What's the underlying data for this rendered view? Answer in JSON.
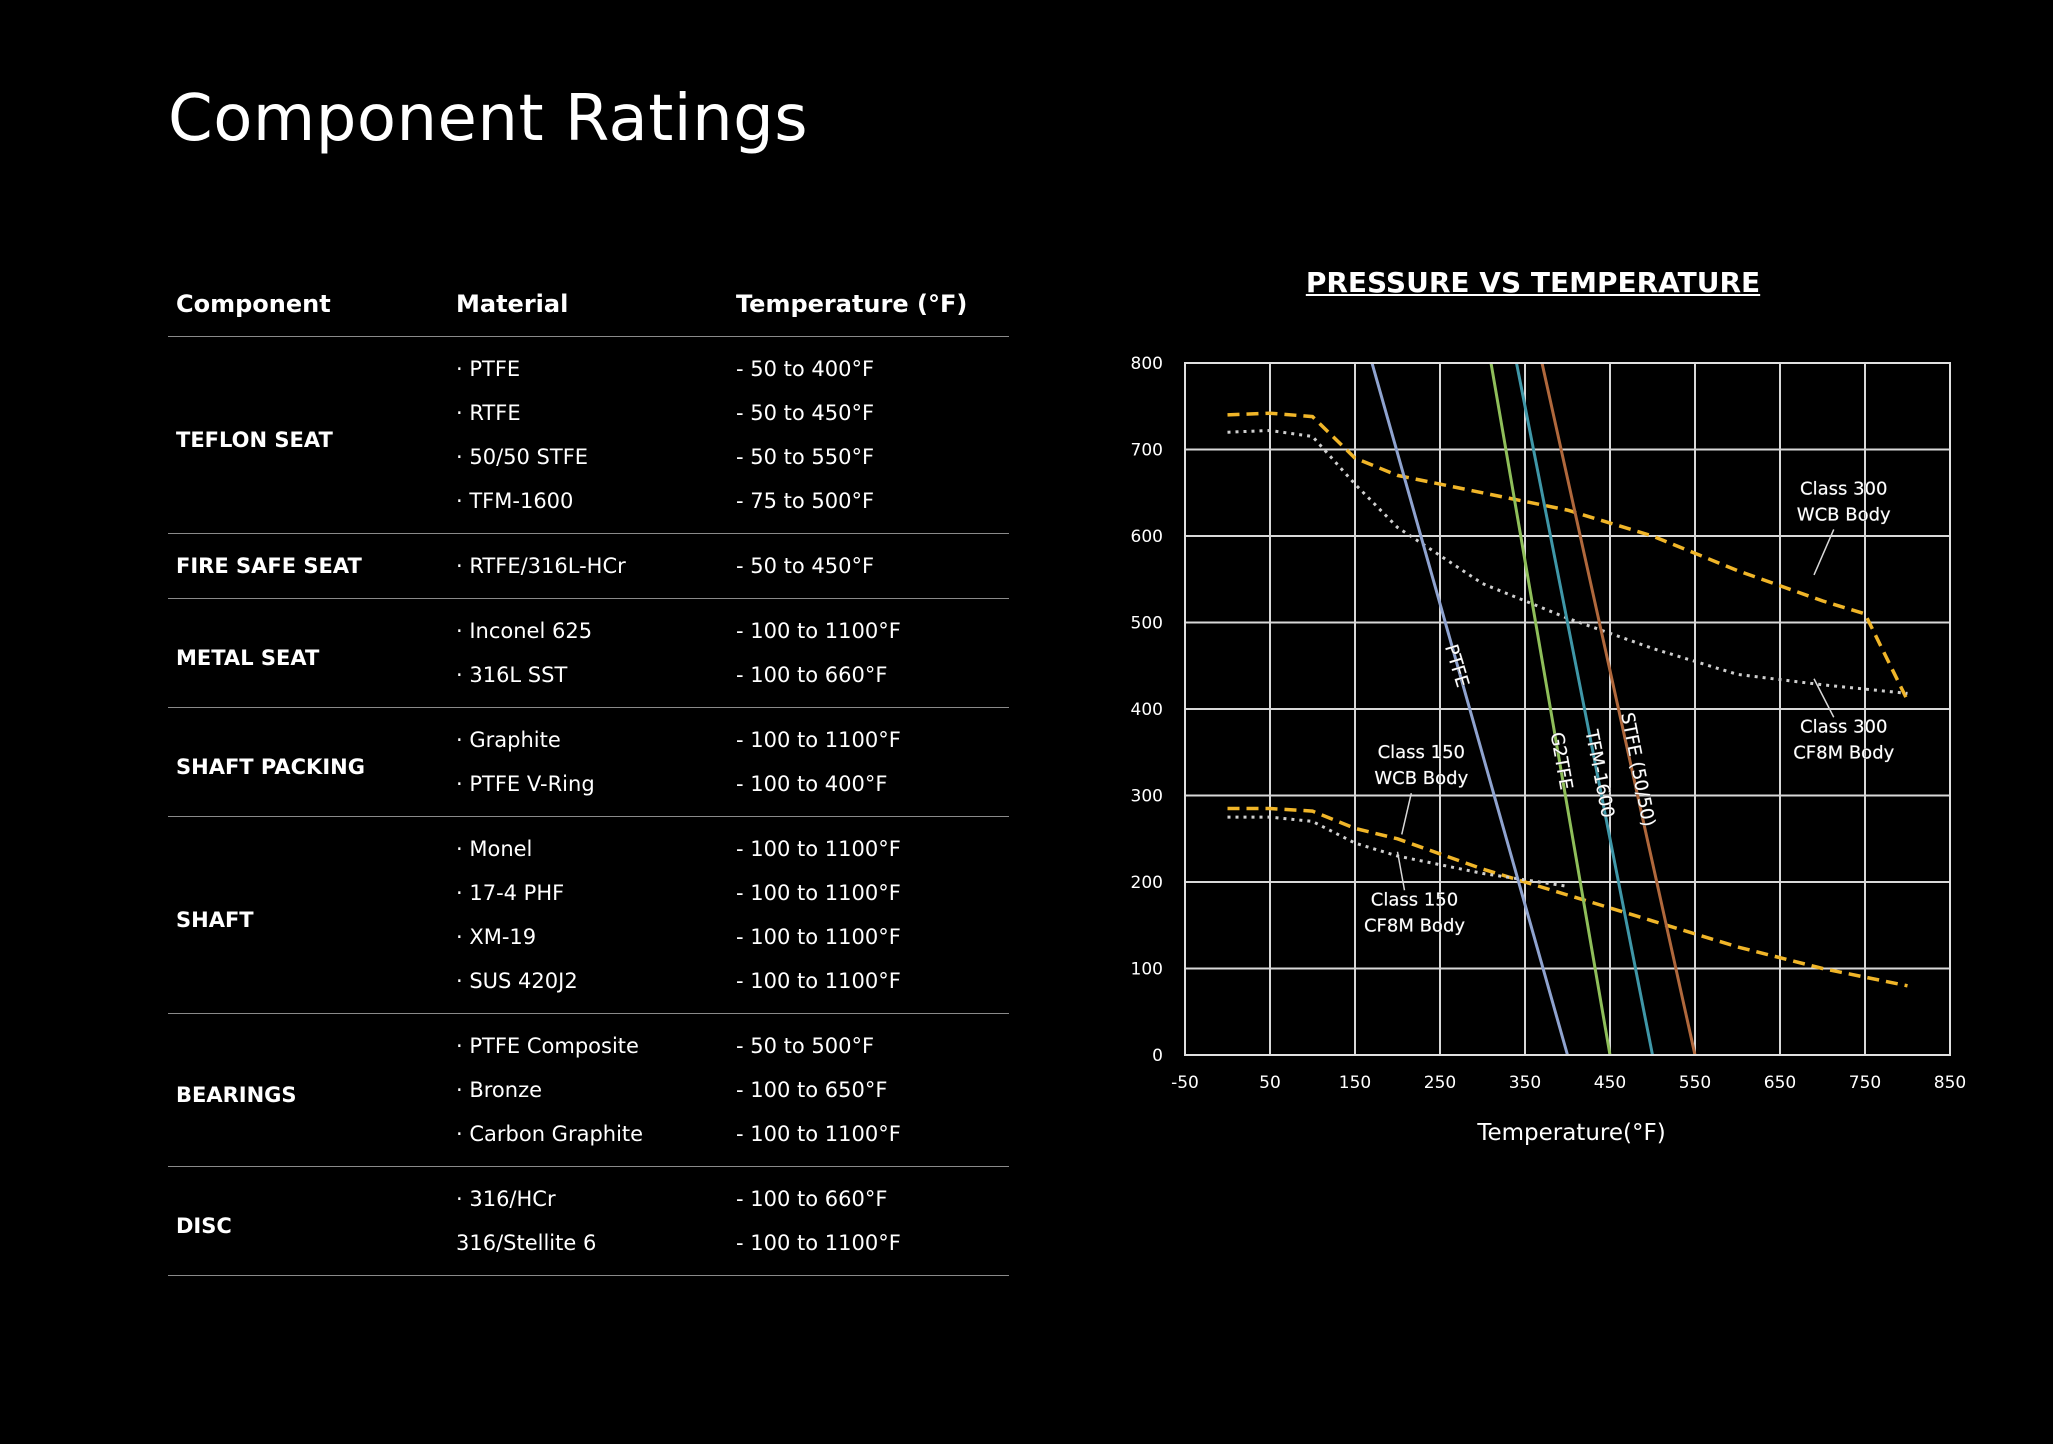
{
  "page": {
    "title": "Component Ratings"
  },
  "table": {
    "headers": [
      "Component",
      "Material",
      "Temperature (°F)"
    ],
    "groups": [
      {
        "component": "TEFLON SEAT",
        "rows": [
          {
            "material": "· PTFE",
            "temperature": "- 50 to 400°F"
          },
          {
            "material": "· RTFE",
            "temperature": "- 50 to 450°F"
          },
          {
            "material": "· 50/50 STFE",
            "temperature": "- 50 to 550°F"
          },
          {
            "material": "· TFM-1600",
            "temperature": "- 75 to 500°F"
          }
        ]
      },
      {
        "component": "FIRE SAFE SEAT",
        "rows": [
          {
            "material": "· RTFE/316L-HCr",
            "temperature": "- 50 to 450°F"
          }
        ]
      },
      {
        "component": "METAL SEAT",
        "rows": [
          {
            "material": "· Inconel 625",
            "temperature": "- 100 to 1100°F"
          },
          {
            "material": "· 316L SST",
            "temperature": "- 100 to 660°F"
          }
        ]
      },
      {
        "component": "SHAFT PACKING",
        "rows": [
          {
            "material": "· Graphite",
            "temperature": "- 100 to 1100°F"
          },
          {
            "material": "· PTFE V-Ring",
            "temperature": "- 100 to 400°F"
          }
        ]
      },
      {
        "component": "SHAFT",
        "rows": [
          {
            "material": "· Monel",
            "temperature": "- 100 to 1100°F"
          },
          {
            "material": "· 17-4 PHF",
            "temperature": "- 100 to 1100°F"
          },
          {
            "material": "· XM-19",
            "temperature": "- 100 to 1100°F"
          },
          {
            "material": "· SUS 420J2",
            "temperature": "- 100 to 1100°F"
          }
        ]
      },
      {
        "component": "BEARINGS",
        "rows": [
          {
            "material": "· PTFE Composite",
            "temperature": "- 50 to 500°F"
          },
          {
            "material": "· Bronze",
            "temperature": "- 100 to 650°F"
          },
          {
            "material": "· Carbon Graphite",
            "temperature": "- 100 to 1100°F"
          }
        ]
      },
      {
        "component": "DISC",
        "rows": [
          {
            "material": "· 316/HCr",
            "temperature": "- 100 to 660°F"
          },
          {
            "material": "316/Stellite 6",
            "temperature": "- 100 to 1100°F"
          }
        ]
      }
    ]
  },
  "chart_data": {
    "type": "line",
    "title": "PRESSURE VS TEMPERATURE",
    "xlabel": "Temperature(°F)",
    "ylabel": "",
    "xlim": [
      -50,
      850
    ],
    "ylim": [
      0,
      800
    ],
    "x_ticks": [
      "-50",
      "50",
      "150",
      "250",
      "350",
      "450",
      "550",
      "650",
      "750",
      "850"
    ],
    "y_ticks": [
      "0",
      "100",
      "200",
      "300",
      "400",
      "500",
      "600",
      "700",
      "800"
    ],
    "grid": true,
    "series": [
      {
        "name": "Class 300 WCB Body",
        "style": "dashed",
        "color": "#f0b528",
        "x": [
          0,
          50,
          100,
          150,
          200,
          300,
          400,
          500,
          600,
          700,
          750,
          800
        ],
        "y": [
          740,
          742,
          738,
          690,
          670,
          650,
          630,
          600,
          560,
          525,
          510,
          410
        ]
      },
      {
        "name": "Class 300 CF8M Body",
        "style": "dotted",
        "color": "#cfcfcf",
        "x": [
          0,
          50,
          100,
          150,
          200,
          300,
          400,
          500,
          600,
          700,
          750,
          800
        ],
        "y": [
          720,
          722,
          715,
          660,
          610,
          545,
          505,
          470,
          440,
          428,
          423,
          418
        ]
      },
      {
        "name": "Class 150 WCB Body",
        "style": "dashed",
        "color": "#f0b528",
        "x": [
          0,
          50,
          100,
          150,
          200,
          300,
          400,
          500,
          600,
          700,
          800
        ],
        "y": [
          285,
          285,
          282,
          262,
          250,
          215,
          185,
          155,
          125,
          100,
          80
        ]
      },
      {
        "name": "Class 150 CF8M Body",
        "style": "dotted",
        "color": "#cfcfcf",
        "x": [
          0,
          50,
          100,
          150,
          200,
          300,
          400
        ],
        "y": [
          275,
          275,
          270,
          245,
          230,
          210,
          195
        ]
      },
      {
        "name": "PTFE",
        "style": "solid",
        "color": "#8fa3cf",
        "x": [
          170,
          400
        ],
        "y": [
          800,
          0
        ]
      },
      {
        "name": "G2TFE",
        "style": "solid",
        "color": "#8fbf5a",
        "x": [
          310,
          450
        ],
        "y": [
          800,
          0
        ]
      },
      {
        "name": "TFM-1600",
        "style": "solid",
        "color": "#3f97a8",
        "x": [
          340,
          500
        ],
        "y": [
          800,
          0
        ]
      },
      {
        "name": "STFE (50/50)",
        "style": "solid",
        "color": "#b0683c",
        "x": [
          370,
          550
        ],
        "y": [
          800,
          0
        ]
      }
    ],
    "annotations": [
      {
        "text": [
          "Class 300",
          "WCB Body"
        ],
        "x": 725,
        "y": 640,
        "pointer_x": 690,
        "pointer_y": 555
      },
      {
        "text": [
          "Class 300",
          "CF8M Body"
        ],
        "x": 725,
        "y": 365,
        "pointer_x": 690,
        "pointer_y": 435
      },
      {
        "text": [
          "Class 150",
          "WCB Body"
        ],
        "x": 228,
        "y": 335,
        "pointer_x": 205,
        "pointer_y": 255
      },
      {
        "text": [
          "Class 150",
          "CF8M Body"
        ],
        "x": 220,
        "y": 165,
        "pointer_x": 200,
        "pointer_y": 235
      },
      {
        "text": [
          "PTFE"
        ],
        "x": 270,
        "y": 450,
        "rotate": 73
      },
      {
        "text": [
          "G2TFE"
        ],
        "x": 393,
        "y": 340,
        "rotate": 80
      },
      {
        "text": [
          "TFM-1600"
        ],
        "x": 438,
        "y": 325,
        "rotate": 79
      },
      {
        "text": [
          "STFE (50/50)"
        ],
        "x": 483,
        "y": 330,
        "rotate": 79
      }
    ]
  }
}
